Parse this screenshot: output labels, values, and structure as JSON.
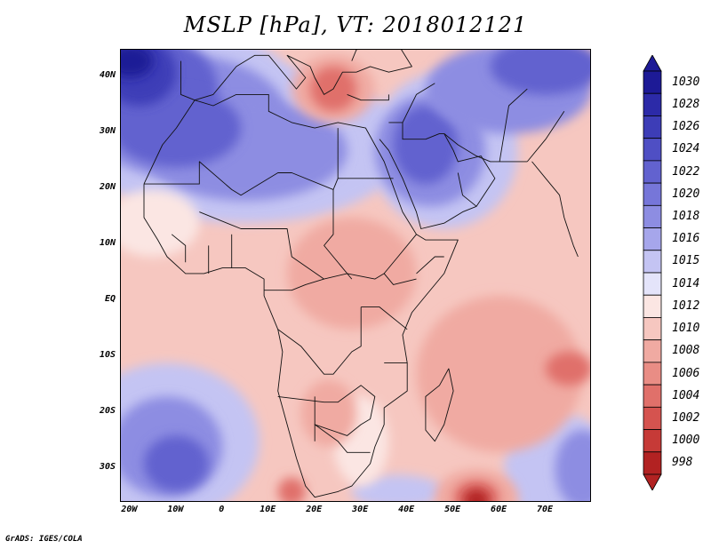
{
  "title": "MSLP [hPa], VT: 2018012121",
  "credit": "GrADS: IGES/COLA",
  "y_axis": {
    "labels": [
      "40N",
      "30N",
      "20N",
      "10N",
      "EQ",
      "10S",
      "20S",
      "30S"
    ],
    "values": [
      40,
      30,
      20,
      10,
      0,
      -10,
      -20,
      -30
    ]
  },
  "x_axis": {
    "labels": [
      "20W",
      "10W",
      "0",
      "10E",
      "20E",
      "30E",
      "40E",
      "50E",
      "60E",
      "70E"
    ],
    "values": [
      -20,
      -10,
      0,
      10,
      20,
      30,
      40,
      50,
      60,
      70
    ]
  },
  "extent": {
    "lon": [
      -22,
      80
    ],
    "lat": [
      -36,
      45
    ]
  },
  "colorbar": {
    "levels": [
      "1030",
      "1028",
      "1026",
      "1024",
      "1022",
      "1020",
      "1018",
      "1016",
      "1015",
      "1014",
      "1012",
      "1010",
      "1008",
      "1006",
      "1004",
      "1002",
      "1000",
      "998"
    ],
    "colors": [
      "#1d1a96",
      "#2c2aa8",
      "#3d3db7",
      "#4f4fc4",
      "#6262cf",
      "#7676d9",
      "#8d8de2",
      "#a6a6eb",
      "#c4c4f3",
      "#e4e4fa",
      "#fbe6e3",
      "#f6c7c0",
      "#f0aaa2",
      "#e98d85",
      "#e0706a",
      "#d5534f",
      "#c63a37",
      "#b22222"
    ]
  },
  "field_colors": {
    "ocean_base": "#f6c7c0",
    "high_1": "#c4c4f3",
    "high_2": "#8d8de2",
    "high_3": "#6262cf",
    "high_4": "#3d3db7",
    "high_5": "#1d1a96",
    "low_1": "#f0aaa2",
    "low_2": "#e0706a",
    "low_3": "#b22222",
    "neutral": "#fbe6e3",
    "border": "#111111"
  }
}
